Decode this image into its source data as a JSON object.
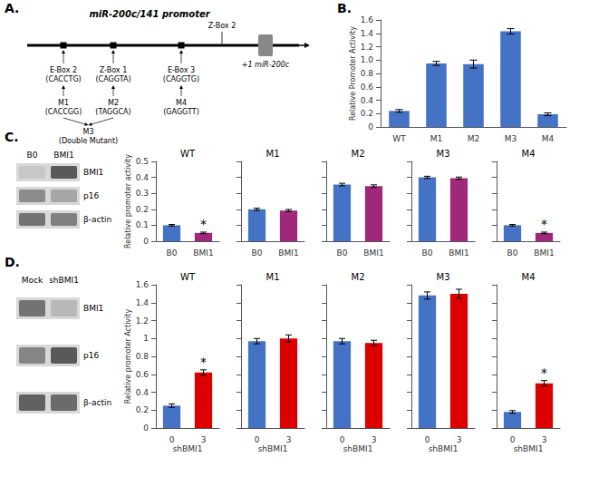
{
  "chart_data": [
    {
      "type": "diagram",
      "title": "miR-200c/141 promoter",
      "annotations": [
        {
          "text": "A."
        },
        {
          "text": "Z-Box 2"
        },
        {
          "text": "+1 miR-200c"
        },
        {
          "text": "E-Box 2\n(CACCTG)"
        },
        {
          "text": "Z-Box 1\n(CAGGTA)"
        },
        {
          "text": "E-Box 3\n(CAGGTG)"
        },
        {
          "text": "M1\n(CACCGG)"
        },
        {
          "text": "M2\n(TAGGCA)"
        },
        {
          "text": "M4\n(GAGGTT)"
        },
        {
          "text": "M3\n(Double Mutant)"
        }
      ]
    },
    {
      "type": "bar",
      "annotations": [
        {
          "text": "B."
        }
      ],
      "categories": [
        "WT",
        "M1",
        "M2",
        "M3",
        "M4"
      ],
      "values": [
        0.24,
        0.95,
        0.94,
        1.43,
        0.19
      ],
      "errors": [
        0.02,
        0.03,
        0.06,
        0.04,
        0.02
      ],
      "color": "#4472C4",
      "ylabel": "Relative Promoter Activity",
      "ylim": [
        0,
        1.6
      ],
      "yticks": [
        0,
        0.2,
        0.4,
        0.6,
        0.8,
        {
          "value": 1.0,
          "label": "1.0"
        },
        1.2,
        1.4,
        1.6
      ],
      "grid": false
    },
    {
      "type": "blot",
      "annotations": [
        {
          "text": "C."
        }
      ],
      "categories": [
        "B0",
        "BMI1"
      ],
      "series": [
        {
          "name": "BMI1",
          "values": [
            0.78,
            0.35
          ]
        },
        {
          "name": "p16",
          "values": [
            0.55,
            0.65
          ]
        },
        {
          "name": "β-actin",
          "values": [
            0.45,
            0.5
          ]
        }
      ]
    },
    {
      "type": "bar",
      "title": "WT",
      "categories": [
        "B0",
        "BMI1"
      ],
      "values": [
        0.1,
        0.052
      ],
      "errors": [
        0.005,
        0.005
      ],
      "colors": [
        "#4472C4",
        "#A0287A"
      ],
      "ylabel": "Relative promoter activity",
      "ylim": [
        0,
        0.5
      ],
      "yticks": [
        0,
        0.1,
        0.2,
        0.3,
        0.4,
        0.5
      ],
      "grid": false,
      "annotations": [
        {
          "text": "*",
          "category": "BMI1"
        }
      ]
    },
    {
      "type": "bar",
      "title": "M1",
      "categories": [
        "B0",
        "BMI1"
      ],
      "values": [
        0.2,
        0.192
      ],
      "errors": [
        0.007,
        0.007
      ],
      "colors": [
        "#4472C4",
        "#A0287A"
      ],
      "ylim": [
        0,
        0.5
      ],
      "yticks": [
        0,
        0.1,
        0.2,
        0.3,
        0.4,
        0.5
      ],
      "grid": false,
      "tick_labels": "x"
    },
    {
      "type": "bar",
      "title": "M2",
      "categories": [
        "B0",
        "BMI1"
      ],
      "values": [
        0.355,
        0.345
      ],
      "errors": [
        0.008,
        0.008
      ],
      "colors": [
        "#4472C4",
        "#A0287A"
      ],
      "ylim": [
        0,
        0.5
      ],
      "yticks": [
        0,
        0.1,
        0.2,
        0.3,
        0.4,
        0.5
      ],
      "grid": false,
      "tick_labels": "x"
    },
    {
      "type": "bar",
      "title": "M3",
      "categories": [
        "B0",
        "BMI1"
      ],
      "values": [
        0.4,
        0.395
      ],
      "errors": [
        0.007,
        0.007
      ],
      "colors": [
        "#4472C4",
        "#A0287A"
      ],
      "ylim": [
        0,
        0.5
      ],
      "yticks": [
        0,
        0.1,
        0.2,
        0.3,
        0.4,
        0.5
      ],
      "grid": false,
      "tick_labels": "x"
    },
    {
      "type": "bar",
      "title": "M4",
      "categories": [
        "B0",
        "BMI1"
      ],
      "values": [
        0.1,
        0.052
      ],
      "errors": [
        0.005,
        0.005
      ],
      "colors": [
        "#4472C4",
        "#A0287A"
      ],
      "ylim": [
        0,
        0.5
      ],
      "yticks": [
        0,
        0.1,
        0.2,
        0.3,
        0.4,
        0.5
      ],
      "grid": false,
      "tick_labels": "x",
      "annotations": [
        {
          "text": "*",
          "category": "BMI1"
        }
      ]
    },
    {
      "type": "blot",
      "annotations": [
        {
          "text": "D."
        }
      ],
      "categories": [
        "Mock",
        "shBMI1"
      ],
      "series": [
        {
          "name": "BMI1",
          "values": [
            0.45,
            0.72
          ]
        },
        {
          "name": "p16",
          "values": [
            0.52,
            0.35
          ]
        },
        {
          "name": "β-actin",
          "values": [
            0.38,
            0.42
          ]
        }
      ]
    },
    {
      "type": "bar",
      "title": "WT",
      "categories": [
        "0",
        "3"
      ],
      "values": [
        0.25,
        0.62
      ],
      "errors": [
        0.02,
        0.03
      ],
      "colors": [
        "#4472C4",
        "#DD0000"
      ],
      "xlabel": "shBMI1",
      "ylabel": "Relative promoter Activity",
      "ylim": [
        0,
        1.6
      ],
      "yticks": [
        0,
        0.2,
        0.4,
        0.6,
        0.8,
        1,
        1.2,
        1.4,
        1.6
      ],
      "grid": false,
      "annotations": [
        {
          "text": "*",
          "category": "3"
        }
      ]
    },
    {
      "type": "bar",
      "title": "M1",
      "categories": [
        "0",
        "3"
      ],
      "values": [
        0.97,
        1.0
      ],
      "errors": [
        0.03,
        0.04
      ],
      "colors": [
        "#4472C4",
        "#DD0000"
      ],
      "xlabel": "shBMI1",
      "ylim": [
        0,
        1.6
      ],
      "yticks": [
        0,
        0.2,
        0.4,
        0.6,
        0.8,
        1,
        1.2,
        1.4,
        1.6
      ],
      "grid": false,
      "tick_labels": "x"
    },
    {
      "type": "bar",
      "title": "M2",
      "categories": [
        "0",
        "3"
      ],
      "values": [
        0.97,
        0.95
      ],
      "errors": [
        0.03,
        0.03
      ],
      "colors": [
        "#4472C4",
        "#DD0000"
      ],
      "xlabel": "shBMI1",
      "ylim": [
        0,
        1.6
      ],
      "yticks": [
        0,
        0.2,
        0.4,
        0.6,
        0.8,
        1,
        1.2,
        1.4,
        1.6
      ],
      "grid": false,
      "tick_labels": "x"
    },
    {
      "type": "bar",
      "title": "M3",
      "categories": [
        "0",
        "3"
      ],
      "values": [
        1.48,
        1.5
      ],
      "errors": [
        0.04,
        0.05
      ],
      "colors": [
        "#4472C4",
        "#DD0000"
      ],
      "xlabel": "shBMI1",
      "ylim": [
        0,
        1.6
      ],
      "yticks": [
        0,
        0.2,
        0.4,
        0.6,
        0.8,
        1,
        1.2,
        1.4,
        1.6
      ],
      "grid": false,
      "tick_labels": "x"
    },
    {
      "type": "bar",
      "title": "M4",
      "categories": [
        "0",
        "3"
      ],
      "values": [
        0.18,
        0.5
      ],
      "errors": [
        0.015,
        0.03
      ],
      "colors": [
        "#4472C4",
        "#DD0000"
      ],
      "xlabel": "shBMI1",
      "ylim": [
        0,
        1.6
      ],
      "yticks": [
        0,
        0.2,
        0.4,
        0.6,
        0.8,
        1,
        1.2,
        1.4,
        1.6
      ],
      "grid": false,
      "tick_labels": "x",
      "annotations": [
        {
          "text": "*",
          "category": "3"
        }
      ]
    }
  ]
}
